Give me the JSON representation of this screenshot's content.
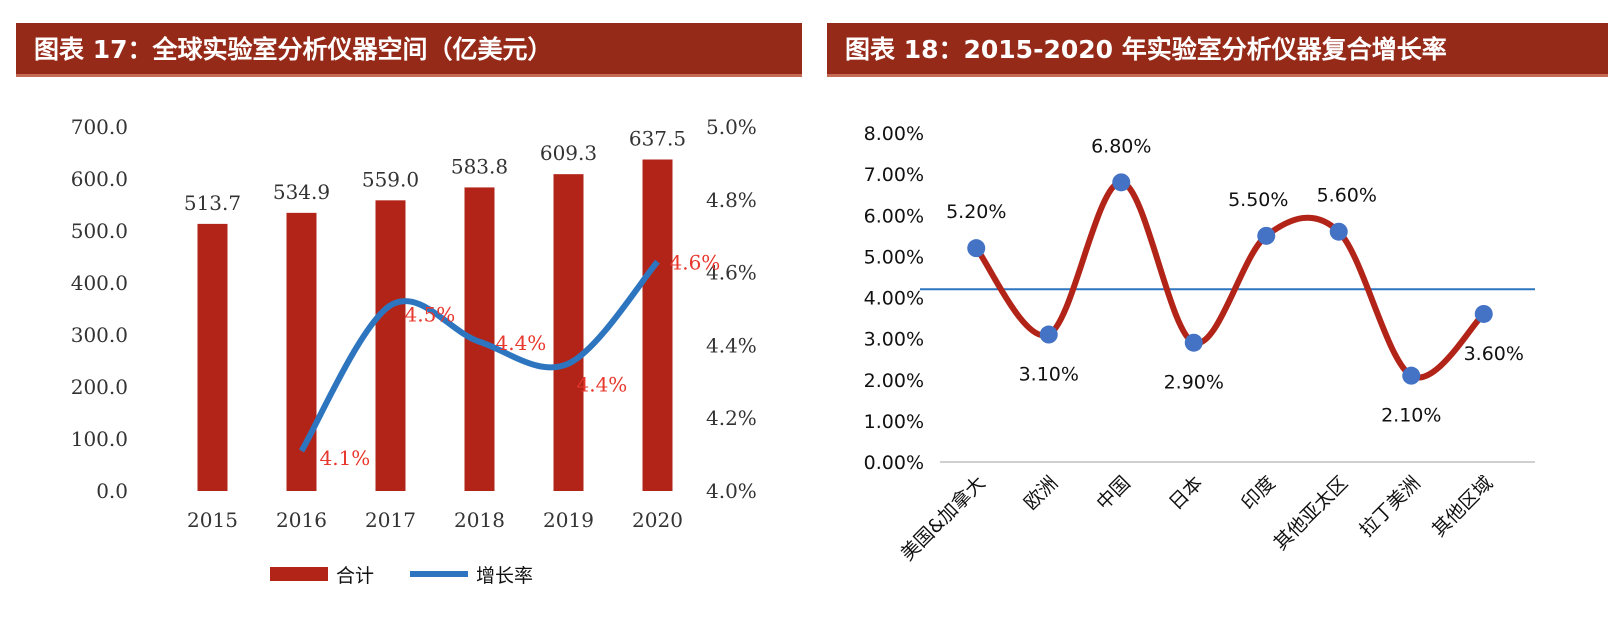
{
  "figure17": {
    "title": "图表 17：全球实验室分析仪器空间（亿美元）",
    "chart_data": {
      "type": "bar+line",
      "categories": [
        "2015",
        "2016",
        "2017",
        "2018",
        "2019",
        "2020"
      ],
      "series": [
        {
          "name": "合计",
          "type": "bar",
          "axis": "left",
          "color": "#b22418",
          "values": [
            513.7,
            534.9,
            559.0,
            583.8,
            609.3,
            637.5
          ],
          "labels": [
            "513.7",
            "534.9",
            "559.0",
            "583.8",
            "609.3",
            "637.5"
          ]
        },
        {
          "name": "增长率",
          "type": "line",
          "axis": "right",
          "color": "#2e75c0",
          "x": [
            "2016",
            "2017",
            "2018",
            "2019",
            "2020"
          ],
          "values": [
            4.11,
            4.51,
            4.41,
            4.35,
            4.63
          ],
          "labels": [
            "4.1%",
            "4.5%",
            "4.4%",
            "4.4%",
            "4.6%"
          ]
        }
      ],
      "ylim_left": [
        0,
        700
      ],
      "yticks_left": [
        "0.0",
        "100.0",
        "200.0",
        "300.0",
        "400.0",
        "500.0",
        "600.0",
        "700.0"
      ],
      "ylim_right": [
        4.0,
        5.0
      ],
      "yticks_right": [
        "4.0%",
        "4.2%",
        "4.4%",
        "4.6%",
        "4.8%",
        "5.0%"
      ],
      "label_color": "#e8372c",
      "grid": false,
      "legend": "bottom"
    }
  },
  "figure18": {
    "title": "图表 18：2015-2020 年实验室分析仪器复合增长率",
    "chart_data": {
      "type": "line",
      "categories": [
        "美国&加拿大",
        "欧洲",
        "中国",
        "日本",
        "印度",
        "其他亚太区",
        "拉丁美洲",
        "其他区域"
      ],
      "values": [
        5.2,
        3.1,
        6.8,
        2.9,
        5.5,
        5.6,
        2.1,
        3.6
      ],
      "labels": [
        "5.20%",
        "3.10%",
        "6.80%",
        "2.90%",
        "5.50%",
        "5.60%",
        "2.10%",
        "3.60%"
      ],
      "line_color": "#b22418",
      "marker_color": "#4472c4",
      "reference_line": {
        "value": 4.2,
        "color": "#2e75c0"
      },
      "ylim": [
        0,
        8
      ],
      "yticks": [
        "0.00%",
        "1.00%",
        "2.00%",
        "3.00%",
        "4.00%",
        "5.00%",
        "6.00%",
        "7.00%",
        "8.00%"
      ],
      "grid": false,
      "legend": "none"
    }
  }
}
